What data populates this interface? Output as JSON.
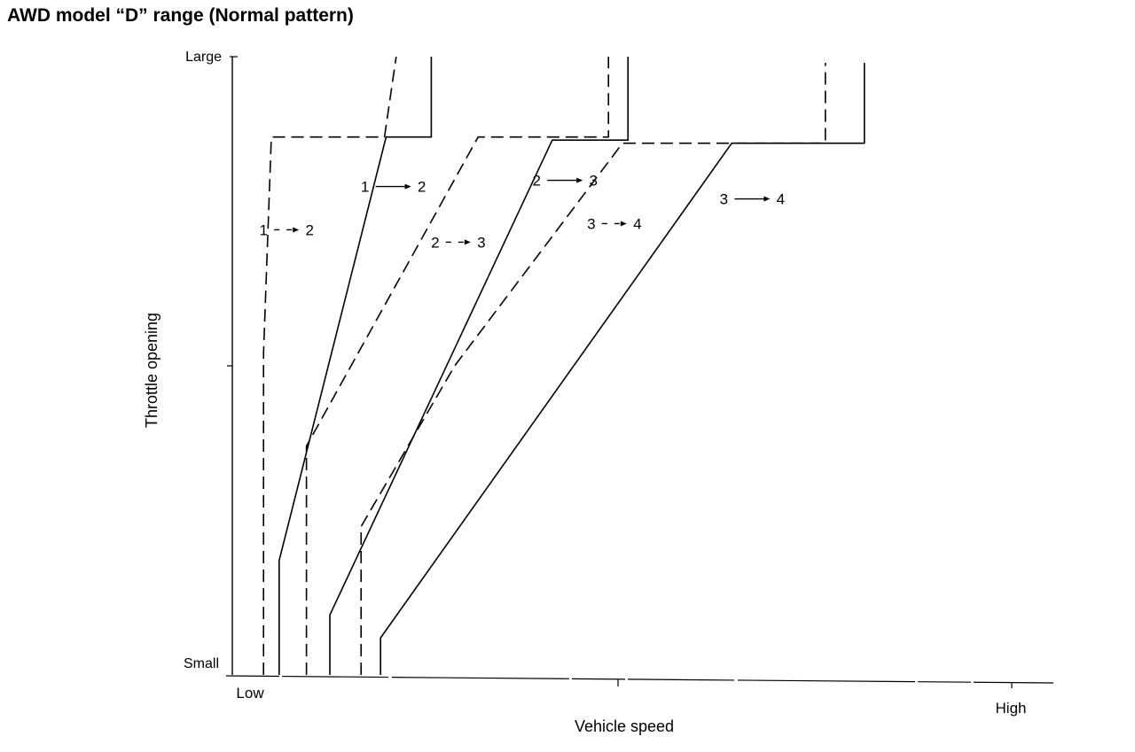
{
  "chart_data": {
    "type": "line",
    "title": "AWD model “D” range (Normal pattern)",
    "xlabel": "Vehicle speed",
    "ylabel": "Throttle opening",
    "x_tick_labels": [
      "Low",
      "High"
    ],
    "y_tick_labels": [
      "Small",
      "Large"
    ],
    "grid": false,
    "legend": "none",
    "series": [
      {
        "name": "1 → 2",
        "label_lines": [
          "1",
          "2"
        ],
        "style": "solid",
        "points": [
          [
            6.0,
            0.0
          ],
          [
            6.0,
            18.5
          ],
          [
            19.7,
            87.0
          ],
          [
            25.5,
            87.0
          ],
          [
            25.5,
            100.0
          ]
        ]
      },
      {
        "name": "1 → 2",
        "label_lines": [
          "1",
          "2"
        ],
        "style": "dashed",
        "points": [
          [
            4.0,
            0.0
          ],
          [
            4.0,
            52.0
          ],
          [
            5.0,
            87.0
          ],
          [
            19.5,
            87.0
          ],
          [
            21.0,
            100.0
          ]
        ]
      },
      {
        "name": "2 → 3",
        "label_lines": [
          "2",
          "3"
        ],
        "style": "solid",
        "points": [
          [
            12.5,
            0.0
          ],
          [
            12.5,
            9.7
          ],
          [
            41.0,
            86.5
          ],
          [
            50.7,
            86.5
          ],
          [
            50.7,
            100.0
          ]
        ]
      },
      {
        "name": "2 → 3",
        "label_lines": [
          "2",
          "3"
        ],
        "style": "dashed",
        "points": [
          [
            9.5,
            0.0
          ],
          [
            9.5,
            37.0
          ],
          [
            31.5,
            87.0
          ],
          [
            48.2,
            87.0
          ],
          [
            48.2,
            100.0
          ]
        ]
      },
      {
        "name": "3 → 4",
        "label_lines": [
          "3",
          "4"
        ],
        "style": "solid",
        "points": [
          [
            19.0,
            0.0
          ],
          [
            19.0,
            6.0
          ],
          [
            64.0,
            86.0
          ],
          [
            81.0,
            86.0
          ],
          [
            81.0,
            99.0
          ]
        ]
      },
      {
        "name": "3 → 4",
        "label_lines": [
          "3",
          "4"
        ],
        "style": "dashed",
        "points": [
          [
            16.5,
            0.0
          ],
          [
            16.5,
            24.0
          ],
          [
            28.5,
            50.0
          ],
          [
            50.0,
            86.0
          ],
          [
            76.0,
            86.0
          ],
          [
            76.0,
            99.0
          ]
        ]
      }
    ],
    "annotations": [
      {
        "from": "1",
        "to": "2",
        "style": "solid",
        "x": 17,
        "y": 79
      },
      {
        "from": "1",
        "to": "2",
        "style": "dashed",
        "x": 4,
        "y": 72
      },
      {
        "from": "2",
        "to": "3",
        "style": "solid",
        "x": 39,
        "y": 80
      },
      {
        "from": "2",
        "to": "3",
        "style": "dashed",
        "x": 26,
        "y": 70
      },
      {
        "from": "3",
        "to": "4",
        "style": "solid",
        "x": 63,
        "y": 77
      },
      {
        "from": "3",
        "to": "4",
        "style": "dashed",
        "x": 46,
        "y": 73
      }
    ]
  }
}
